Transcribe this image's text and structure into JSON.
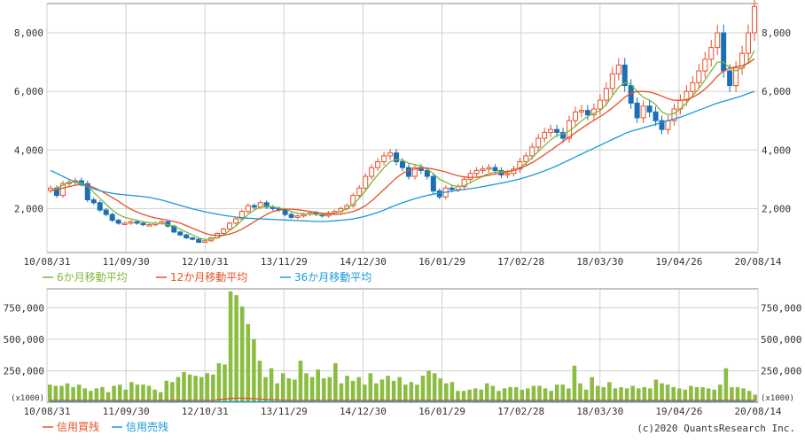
{
  "chart_data": [
    {
      "type": "candlestick",
      "x_tick_labels": [
        "10/08/31",
        "11/09/30",
        "12/10/31",
        "13/11/29",
        "14/12/30",
        "16/01/29",
        "17/02/28",
        "18/03/30",
        "19/04/26",
        "20/08/14"
      ],
      "y_tick_labels_left": [
        "2,000",
        "4,000",
        "6,000",
        "8,000"
      ],
      "y_tick_labels_right": [
        "2,000",
        "4,000",
        "6,000",
        "8,000"
      ],
      "ylim": [
        500,
        9000
      ],
      "grid": true,
      "legend_position": "bottom-left",
      "candles": [
        2700,
        2450,
        2850,
        2900,
        2950,
        2850,
        2300,
        2200,
        1950,
        1800,
        1600,
        1500,
        1500,
        1550,
        1500,
        1450,
        1450,
        1500,
        1550,
        1400,
        1200,
        1100,
        1000,
        950,
        850,
        900,
        1000,
        1150,
        1300,
        1500,
        1650,
        1900,
        2100,
        2050,
        2200,
        2050,
        2000,
        1950,
        1800,
        1700,
        1750,
        1800,
        1850,
        1800,
        1750,
        1850,
        1900,
        2000,
        2100,
        2450,
        2700,
        3100,
        3400,
        3600,
        3800,
        3900,
        3600,
        3400,
        3100,
        3400,
        3300,
        3100,
        2600,
        2400,
        2700,
        2650,
        2750,
        3000,
        3200,
        3300,
        3350,
        3400,
        3300,
        3150,
        3200,
        3350,
        3600,
        3800,
        4100,
        4400,
        4600,
        4700,
        4600,
        4400,
        5000,
        5300,
        5350,
        5200,
        5400,
        5700,
        6100,
        6600,
        6900,
        6200,
        5600,
        5100,
        5500,
        5300,
        5000,
        4700,
        5000,
        5400,
        5700,
        6000,
        6300,
        6700,
        7100,
        7500,
        8000,
        6700,
        6200,
        6800,
        7300,
        8000,
        8900
      ],
      "series": [
        {
          "name": "6か月移動平均",
          "color": "#7cb83c",
          "values": [
            2600,
            2700,
            2800,
            2880,
            2920,
            2870,
            2750,
            2550,
            2350,
            2150,
            1950,
            1800,
            1700,
            1650,
            1600,
            1550,
            1520,
            1500,
            1490,
            1450,
            1400,
            1300,
            1200,
            1100,
            1000,
            950,
            950,
            1000,
            1100,
            1250,
            1400,
            1600,
            1800,
            1950,
            2050,
            2080,
            2060,
            2020,
            1980,
            1900,
            1850,
            1820,
            1800,
            1800,
            1790,
            1800,
            1840,
            1900,
            2000,
            2150,
            2350,
            2600,
            2900,
            3150,
            3400,
            3600,
            3680,
            3650,
            3550,
            3500,
            3450,
            3350,
            3200,
            3000,
            2900,
            2800,
            2750,
            2780,
            2880,
            3000,
            3100,
            3200,
            3250,
            3260,
            3270,
            3300,
            3400,
            3550,
            3750,
            3950,
            4150,
            4350,
            4500,
            4550,
            4650,
            4800,
            5000,
            5150,
            5250,
            5350,
            5550,
            5850,
            6150,
            6300,
            6250,
            6000,
            5800,
            5700,
            5550,
            5300,
            5200,
            5250,
            5400,
            5600,
            5850,
            6100,
            6400,
            6700,
            7000,
            7000,
            6800,
            6700,
            6800,
            7000,
            7400
          ]
        },
        {
          "name": "12か月移動平均",
          "color": "#e8502a",
          "values": [
            2600,
            2650,
            2700,
            2750,
            2800,
            2820,
            2800,
            2720,
            2620,
            2500,
            2380,
            2250,
            2100,
            1980,
            1880,
            1800,
            1730,
            1680,
            1640,
            1600,
            1560,
            1500,
            1420,
            1330,
            1240,
            1160,
            1100,
            1080,
            1090,
            1130,
            1200,
            1300,
            1420,
            1550,
            1680,
            1800,
            1900,
            1950,
            1980,
            1980,
            1960,
            1930,
            1900,
            1870,
            1840,
            1810,
            1800,
            1810,
            1850,
            1900,
            1980,
            2100,
            2260,
            2450,
            2650,
            2850,
            3050,
            3200,
            3300,
            3350,
            3380,
            3380,
            3350,
            3300,
            3250,
            3180,
            3120,
            3080,
            3060,
            3070,
            3100,
            3140,
            3180,
            3220,
            3260,
            3300,
            3370,
            3460,
            3570,
            3700,
            3840,
            3990,
            4140,
            4290,
            4440,
            4590,
            4740,
            4880,
            5010,
            5140,
            5280,
            5440,
            5620,
            5800,
            5940,
            6000,
            6000,
            5980,
            5920,
            5840,
            5750,
            5700,
            5690,
            5720,
            5800,
            5920,
            6080,
            6280,
            6520,
            6700,
            6800,
            6840,
            6880,
            6960,
            7120
          ]
        },
        {
          "name": "36か月移動平均",
          "color": "#1a9ad6",
          "values": [
            3300,
            3200,
            3100,
            3000,
            2910,
            2820,
            2740,
            2670,
            2610,
            2560,
            2520,
            2490,
            2470,
            2450,
            2430,
            2410,
            2380,
            2340,
            2290,
            2230,
            2170,
            2110,
            2050,
            1990,
            1940,
            1890,
            1850,
            1810,
            1770,
            1740,
            1710,
            1690,
            1670,
            1660,
            1650,
            1640,
            1630,
            1620,
            1610,
            1600,
            1590,
            1580,
            1570,
            1560,
            1560,
            1570,
            1580,
            1600,
            1620,
            1650,
            1690,
            1740,
            1800,
            1870,
            1950,
            2040,
            2120,
            2200,
            2270,
            2340,
            2400,
            2450,
            2490,
            2530,
            2560,
            2590,
            2620,
            2650,
            2680,
            2710,
            2750,
            2790,
            2830,
            2870,
            2910,
            2960,
            3010,
            3070,
            3140,
            3210,
            3290,
            3370,
            3460,
            3560,
            3660,
            3760,
            3860,
            3960,
            4060,
            4160,
            4260,
            4360,
            4460,
            4560,
            4640,
            4700,
            4760,
            4820,
            4880,
            4940,
            5000,
            5060,
            5120,
            5200,
            5280,
            5360,
            5440,
            5520,
            5600,
            5660,
            5720,
            5780,
            5850,
            5930,
            6000
          ]
        }
      ]
    },
    {
      "type": "bar",
      "x_tick_labels": [
        "10/08/31",
        "11/09/30",
        "12/10/31",
        "13/11/29",
        "14/12/30",
        "16/01/29",
        "17/02/28",
        "18/03/30",
        "19/04/26",
        "20/08/14"
      ],
      "y_tick_labels_left": [
        "(x1000)",
        "250,000",
        "500,000",
        "750,000"
      ],
      "y_tick_labels_right": [
        "(x1000)",
        "250,000",
        "500,000",
        "750,000"
      ],
      "ylim": [
        0,
        900000
      ],
      "bar_color": "#8bbd42",
      "values": [
        140000,
        130000,
        130000,
        150000,
        120000,
        140000,
        110000,
        90000,
        110000,
        120000,
        80000,
        130000,
        140000,
        100000,
        160000,
        140000,
        140000,
        130000,
        100000,
        80000,
        170000,
        160000,
        200000,
        240000,
        220000,
        210000,
        200000,
        230000,
        220000,
        310000,
        300000,
        880000,
        850000,
        760000,
        620000,
        500000,
        330000,
        200000,
        270000,
        150000,
        230000,
        190000,
        180000,
        330000,
        230000,
        200000,
        260000,
        190000,
        200000,
        310000,
        150000,
        210000,
        170000,
        200000,
        140000,
        230000,
        150000,
        180000,
        210000,
        170000,
        200000,
        140000,
        160000,
        140000,
        210000,
        250000,
        230000,
        190000,
        150000,
        160000,
        90000,
        90000,
        100000,
        110000,
        100000,
        150000,
        130000,
        90000,
        110000,
        120000,
        120000,
        100000,
        110000,
        130000,
        130000,
        110000,
        90000,
        140000,
        140000,
        110000,
        290000,
        150000,
        100000,
        200000,
        130000,
        120000,
        160000,
        110000,
        120000,
        110000,
        130000,
        110000,
        120000,
        110000,
        180000,
        150000,
        140000,
        120000,
        110000,
        100000,
        130000,
        120000,
        120000,
        110000,
        100000,
        140000,
        270000,
        120000,
        120000,
        110000,
        90000,
        60000
      ],
      "series": [
        {
          "name": "信用買残",
          "color": "#e8502a",
          "values": [
            15000,
            15000,
            15000,
            15000,
            15000,
            15000,
            15000,
            15000,
            15000,
            15000,
            15000,
            15000,
            15000,
            15000,
            15000,
            15000,
            15000,
            15000,
            15000,
            15000,
            15000,
            15000,
            15000,
            15000,
            15000,
            15000,
            15000,
            15000,
            15000,
            20000,
            25000,
            30000,
            32000,
            32000,
            30000,
            28000,
            25000,
            22000,
            20000,
            18000,
            16000,
            15000,
            15000,
            15000,
            15000,
            15000,
            15000,
            15000,
            15000,
            15000,
            15000,
            15000,
            15000,
            15000,
            15000,
            15000,
            15000,
            15000,
            15000,
            15000,
            15000,
            15000,
            15000,
            15000,
            15000,
            15000,
            15000,
            15000,
            15000,
            15000,
            15000,
            15000,
            15000,
            15000,
            15000,
            15000,
            15000,
            15000,
            15000,
            15000,
            15000,
            15000,
            15000,
            15000,
            15000,
            15000,
            15000,
            15000,
            15000,
            15000,
            15000,
            15000,
            15000,
            15000,
            15000,
            15000,
            15000,
            15000,
            15000,
            15000,
            15000,
            15000,
            15000,
            15000,
            15000,
            15000,
            15000,
            15000,
            15000,
            15000,
            15000,
            15000,
            15000,
            15000,
            15000,
            15000,
            15000,
            15000,
            15000,
            15000,
            15000,
            15000
          ]
        },
        {
          "name": "信用売残",
          "color": "#1a9ad6",
          "values": [
            4000,
            4000,
            4000,
            4000,
            4000,
            4000,
            4000,
            4000,
            4000,
            4000,
            4000,
            4000,
            4000,
            4000,
            4000,
            4000,
            4000,
            4000,
            4000,
            4000,
            4000,
            4000,
            4000,
            4000,
            4000,
            4000,
            4000,
            4000,
            4000,
            4000,
            4000,
            4000,
            4000,
            4000,
            4000,
            4000,
            4000,
            4000,
            4000,
            4000,
            4000,
            4000,
            4000,
            4000,
            4000,
            4000,
            4000,
            4000,
            4000,
            4000,
            4000,
            4000,
            4000,
            4000,
            4000,
            4000,
            4000,
            4000,
            4000,
            4000,
            4000,
            4000,
            4000,
            4000,
            4000,
            4000,
            4000,
            4000,
            4000,
            4000,
            4000,
            4000,
            4000,
            4000,
            4000,
            4000,
            4000,
            4000,
            4000,
            4000,
            4000,
            4000,
            4000,
            4000,
            4000,
            4000,
            4000,
            4000,
            4000,
            4000,
            4000,
            4000,
            4000,
            4000,
            4000,
            4000,
            4000,
            4000,
            4000,
            4000,
            4000,
            4000,
            4000,
            4000,
            4000,
            4000,
            4000,
            4000,
            4000,
            4000,
            4000,
            4000,
            4000,
            4000,
            4000,
            4000,
            4000,
            4000,
            4000,
            4000,
            4000,
            4000
          ]
        }
      ]
    }
  ],
  "copyright": "(c)2020 QuantsResearch Inc."
}
